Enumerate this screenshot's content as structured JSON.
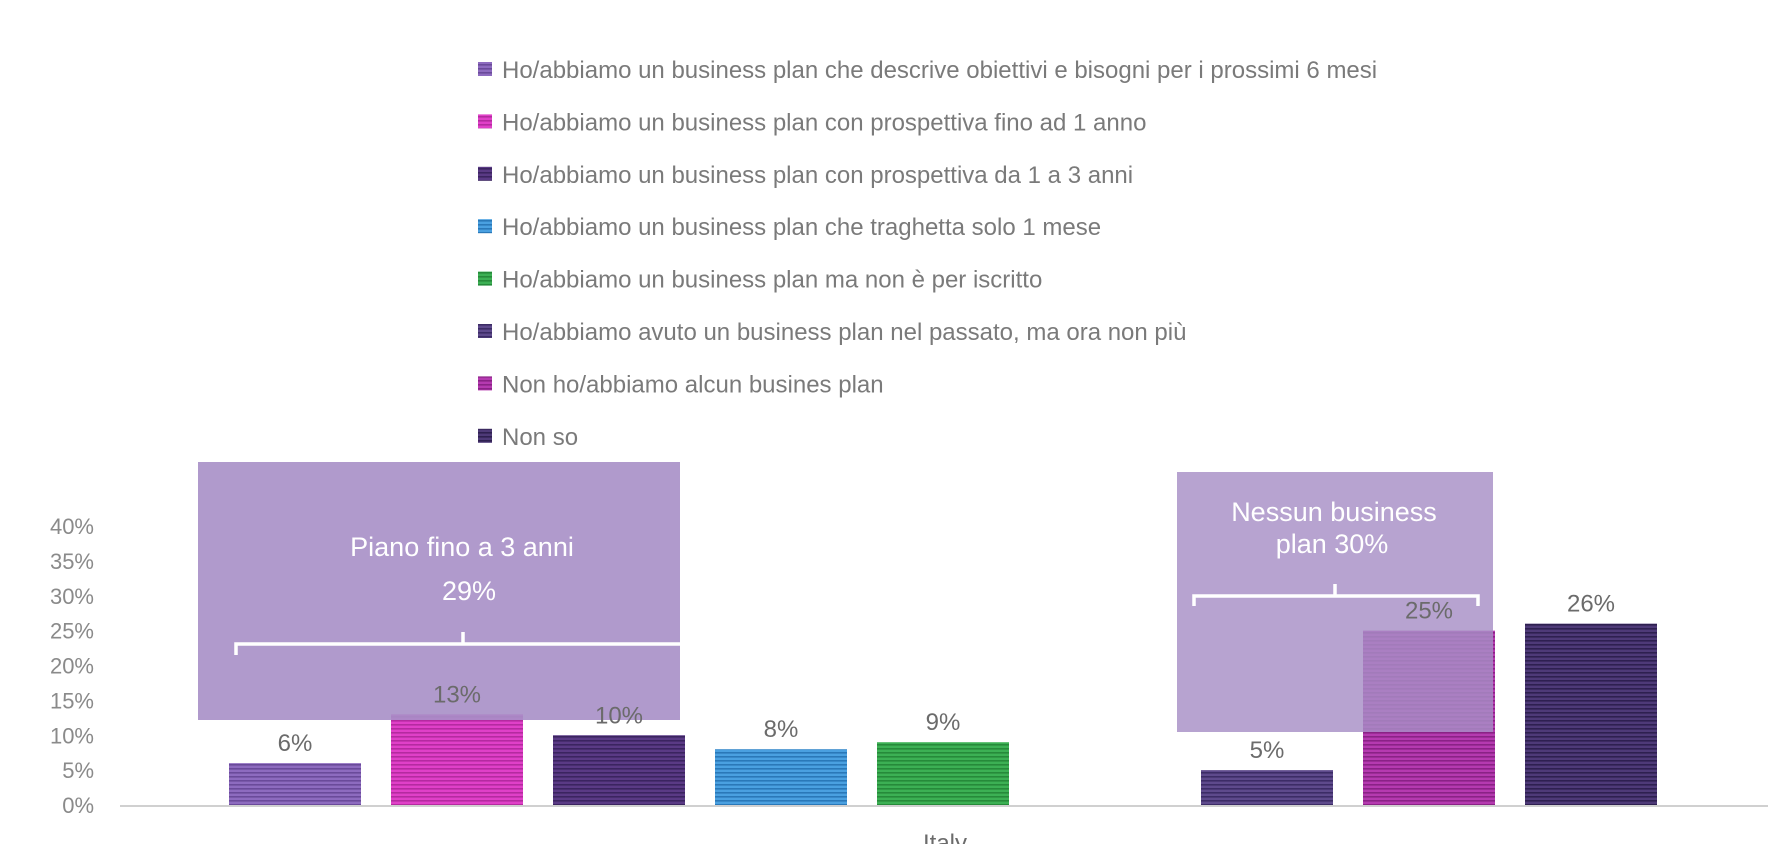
{
  "chart_data": {
    "type": "bar",
    "ylim": [
      0,
      40
    ],
    "y_ticks": [
      "0%",
      "5%",
      "10%",
      "15%",
      "20%",
      "25%",
      "30%",
      "35%",
      "40%"
    ],
    "x_tick_label": "Italy",
    "grid": false,
    "legend_position": "top",
    "series": [
      {
        "name": "Ho/abbiamo un business plan che descrive obiettivi e bisogni per i prossimi 6 mesi",
        "value": 6,
        "label": "6%",
        "color": "#8d6bbf",
        "stripe": "#6a4a9a"
      },
      {
        "name": "Ho/abbiamo un business plan con prospettiva fino ad 1 anno",
        "value": 13,
        "label": "13%",
        "color": "#e040c8",
        "stripe": "#b52aa0"
      },
      {
        "name": "Ho/abbiamo un business plan con prospettiva da 1 a 3 anni",
        "value": 10,
        "label": "10%",
        "color": "#5a3a85",
        "stripe": "#3b2460"
      },
      {
        "name": "Ho/abbiamo un business plan che traghetta solo 1 mese",
        "value": 8,
        "label": "8%",
        "color": "#4aa0e0",
        "stripe": "#2a78b8"
      },
      {
        "name": "Ho/abbiamo un business plan ma non è per iscritto",
        "value": 9,
        "label": "9%",
        "color": "#3cb054",
        "stripe": "#268a3a"
      },
      {
        "name": "Ho/abbiamo avuto un business plan nel passato, ma ora non più",
        "value": 5,
        "label": "5%",
        "color": "#5e4a8c",
        "stripe": "#3c2c66"
      },
      {
        "name": "Non ho/abbiamo alcun busines plan",
        "value": 25,
        "label": "25%",
        "color": "#b53ab0",
        "stripe": "#8a2286"
      },
      {
        "name": "Non so",
        "value": 26,
        "label": "26%",
        "color": "#4e3a78",
        "stripe": "#2e2050"
      }
    ],
    "annotations": [
      {
        "line1": "Piano fino a 3 anni",
        "line2": "29%"
      },
      {
        "line1": "Nessun business",
        "line2": "plan 30%"
      }
    ],
    "callout_color": "#a78fc6"
  }
}
